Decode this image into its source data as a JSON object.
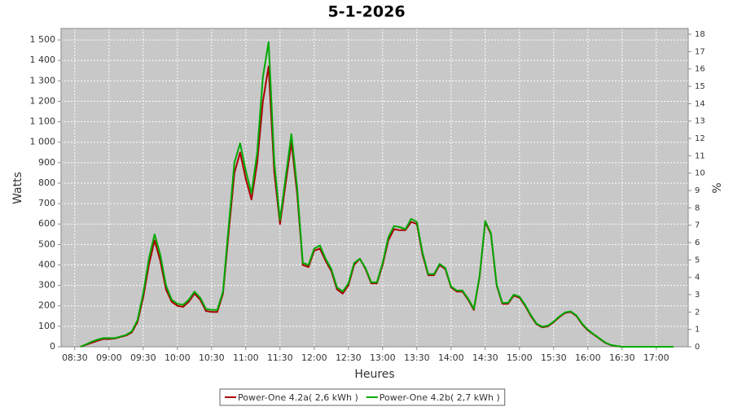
{
  "chart_data": {
    "type": "line",
    "title": "5-1-2026",
    "xlabel": "Heures",
    "ylabel": "Watts",
    "y2label": "%",
    "x": [
      "08:35",
      "08:40",
      "08:45",
      "08:50",
      "08:55",
      "09:00",
      "09:05",
      "09:10",
      "09:15",
      "09:20",
      "09:25",
      "09:30",
      "09:35",
      "09:40",
      "09:45",
      "09:50",
      "09:55",
      "10:00",
      "10:05",
      "10:10",
      "10:15",
      "10:20",
      "10:25",
      "10:30",
      "10:35",
      "10:40",
      "10:45",
      "10:50",
      "10:55",
      "11:00",
      "11:05",
      "11:10",
      "11:15",
      "11:20",
      "11:25",
      "11:30",
      "11:35",
      "11:40",
      "11:45",
      "11:50",
      "11:55",
      "12:00",
      "12:05",
      "12:10",
      "12:15",
      "12:20",
      "12:25",
      "12:30",
      "12:35",
      "12:40",
      "12:45",
      "12:50",
      "12:55",
      "13:00",
      "13:05",
      "13:10",
      "13:15",
      "13:20",
      "13:25",
      "13:30",
      "13:35",
      "13:40",
      "13:45",
      "13:50",
      "13:55",
      "14:00",
      "14:05",
      "14:10",
      "14:15",
      "14:20",
      "14:25",
      "14:30",
      "14:35",
      "14:40",
      "14:45",
      "14:50",
      "14:55",
      "15:00",
      "15:05",
      "15:10",
      "15:15",
      "15:20",
      "15:25",
      "15:30",
      "15:35",
      "15:40",
      "15:45",
      "15:50",
      "15:55",
      "16:00",
      "16:05",
      "16:10",
      "16:15",
      "16:20",
      "16:25",
      "16:30",
      "16:35",
      "16:40",
      "16:45",
      "16:50",
      "16:55",
      "17:00",
      "17:05",
      "17:10",
      "17:15"
    ],
    "series": [
      {
        "name": "Power-One 4.2a( 2,6 kWh )",
        "color": "#aa0000",
        "values": [
          0,
          10,
          20,
          30,
          38,
          38,
          40,
          48,
          55,
          70,
          120,
          240,
          400,
          520,
          420,
          280,
          220,
          200,
          195,
          220,
          260,
          230,
          175,
          170,
          170,
          260,
          560,
          850,
          950,
          820,
          720,
          900,
          1200,
          1370,
          850,
          600,
          800,
          1000,
          750,
          400,
          390,
          470,
          480,
          420,
          370,
          280,
          260,
          300,
          400,
          430,
          380,
          310,
          310,
          400,
          520,
          575,
          570,
          570,
          610,
          600,
          450,
          350,
          350,
          400,
          380,
          290,
          270,
          270,
          230,
          180,
          340,
          610,
          550,
          300,
          210,
          210,
          250,
          240,
          200,
          150,
          110,
          95,
          100,
          120,
          145,
          165,
          170,
          150,
          110,
          80,
          60,
          40,
          20,
          8,
          3,
          0,
          0,
          0,
          0,
          0,
          0,
          0,
          0,
          0,
          0
        ]
      },
      {
        "name": "Power-One 4.2b( 2,7 kWh )",
        "color": "#00aa00",
        "values": [
          0,
          12,
          25,
          35,
          42,
          42,
          42,
          50,
          58,
          75,
          130,
          260,
          430,
          550,
          450,
          300,
          230,
          210,
          205,
          230,
          270,
          240,
          185,
          180,
          180,
          270,
          590,
          900,
          995,
          860,
          750,
          950,
          1320,
          1490,
          900,
          620,
          830,
          1040,
          780,
          410,
          400,
          480,
          495,
          430,
          380,
          290,
          270,
          310,
          410,
          430,
          385,
          315,
          315,
          410,
          535,
          590,
          585,
          575,
          625,
          610,
          460,
          355,
          355,
          405,
          385,
          295,
          275,
          275,
          235,
          185,
          345,
          615,
          555,
          305,
          215,
          215,
          255,
          245,
          205,
          155,
          113,
          98,
          103,
          123,
          148,
          168,
          173,
          153,
          113,
          83,
          62,
          42,
          22,
          9,
          4,
          0,
          0,
          0,
          0,
          0,
          0,
          0,
          0,
          0,
          0
        ]
      }
    ],
    "xlim": [
      "08:18",
      "17:28"
    ],
    "xticks": [
      "08:30",
      "09:00",
      "09:30",
      "10:00",
      "10:30",
      "11:00",
      "11:30",
      "12:00",
      "12:30",
      "13:00",
      "13:30",
      "14:00",
      "14:30",
      "15:00",
      "15:30",
      "16:00",
      "16:30",
      "17:00"
    ],
    "ylim": [
      0,
      1556
    ],
    "yticks": [
      0,
      100,
      200,
      300,
      400,
      500,
      600,
      700,
      800,
      900,
      {
        "value": 1000,
        "label": "1 000"
      },
      {
        "value": 1100,
        "label": "1 100"
      },
      {
        "value": 1200,
        "label": "1 200"
      },
      {
        "value": 1300,
        "label": "1 300"
      },
      {
        "value": 1400,
        "label": "1 400"
      },
      {
        "value": 1500,
        "label": "1 500"
      }
    ],
    "y2lim": [
      0,
      18.33
    ],
    "y2ticks": [
      0,
      1,
      2,
      3,
      4,
      5,
      6,
      7,
      8,
      9,
      10,
      11,
      12,
      13,
      14,
      15,
      16,
      17,
      18
    ],
    "grid": true,
    "legend": "bottom"
  }
}
